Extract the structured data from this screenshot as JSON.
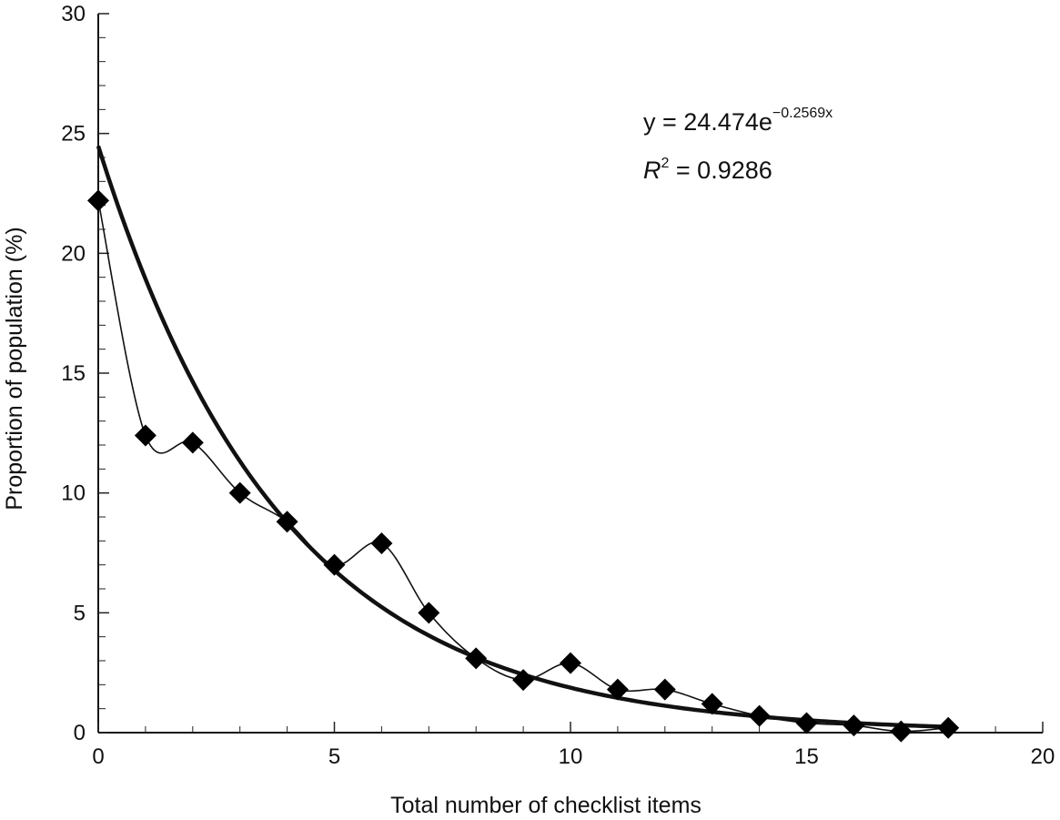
{
  "chart_data": {
    "type": "scatter",
    "xlabel": "Total number of checklist items",
    "ylabel": "Proportion of population (%)",
    "xlim": [
      0,
      20
    ],
    "ylim": [
      0,
      30
    ],
    "xticks": [
      "0",
      "5",
      "10",
      "15",
      "20"
    ],
    "yticks": [
      "0",
      "5",
      "10",
      "15",
      "20",
      "25",
      "30"
    ],
    "grid": false,
    "series": [
      {
        "x": [
          0,
          1,
          2,
          3,
          4,
          5,
          6,
          7,
          8,
          9,
          10,
          11,
          12,
          13,
          14,
          15,
          16,
          17,
          18
        ],
        "y": [
          22.2,
          12.4,
          12.1,
          10.0,
          8.8,
          7.0,
          7.9,
          5.0,
          3.1,
          2.2,
          2.9,
          1.8,
          1.8,
          1.2,
          0.7,
          0.4,
          0.3,
          0.05,
          0.2
        ],
        "marker": "diamond",
        "line": "smooth"
      }
    ],
    "trendline": {
      "type": "exponential",
      "a": 24.474,
      "b": -0.2569
    },
    "annotations": {
      "equation_prefix": "y = 24.474e",
      "equation_exponent": "−0.2569x",
      "r2_prefix": "R",
      "r2_sup": "2",
      "r2_value": " = 0.9286"
    }
  }
}
